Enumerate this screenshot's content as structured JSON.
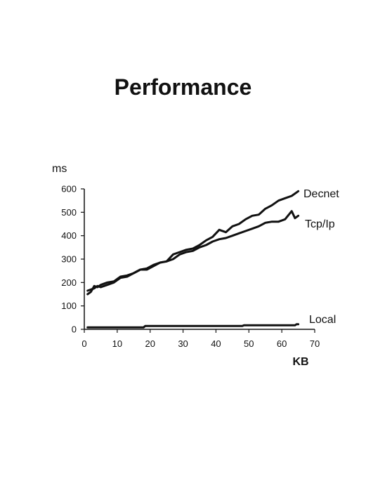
{
  "chart_data": {
    "type": "line",
    "title": "Performance",
    "ylabel": "ms",
    "xlabel": "KB",
    "xlim": [
      0,
      70
    ],
    "ylim": [
      0,
      600
    ],
    "xticks": [
      0,
      10,
      20,
      30,
      40,
      50,
      60,
      70
    ],
    "yticks": [
      0,
      100,
      200,
      300,
      400,
      500,
      600
    ],
    "grid": false,
    "legend": "inline labels at line ends",
    "series": [
      {
        "name": "Decnet",
        "x": [
          1,
          2,
          3,
          4,
          5,
          7,
          9,
          11,
          13,
          15,
          17,
          19,
          21,
          23,
          25,
          27,
          29,
          31,
          33,
          35,
          37,
          39,
          41,
          43,
          45,
          47,
          49,
          51,
          53,
          55,
          57,
          59,
          61,
          63,
          65
        ],
        "y": [
          150,
          160,
          185,
          180,
          190,
          200,
          205,
          225,
          230,
          240,
          255,
          260,
          275,
          285,
          290,
          320,
          330,
          340,
          345,
          360,
          380,
          395,
          425,
          415,
          440,
          450,
          470,
          485,
          490,
          515,
          530,
          550,
          560,
          570,
          590
        ]
      },
      {
        "name": "Tcp/Ip",
        "x": [
          1,
          2,
          3,
          4,
          5,
          7,
          9,
          11,
          13,
          15,
          17,
          19,
          21,
          23,
          25,
          27,
          29,
          31,
          33,
          35,
          37,
          39,
          41,
          43,
          45,
          47,
          49,
          51,
          53,
          55,
          57,
          59,
          61,
          63,
          64,
          65
        ],
        "y": [
          165,
          170,
          175,
          185,
          180,
          190,
          200,
          220,
          225,
          240,
          255,
          255,
          270,
          285,
          290,
          300,
          320,
          330,
          335,
          350,
          360,
          375,
          385,
          390,
          400,
          410,
          420,
          430,
          440,
          455,
          460,
          460,
          470,
          505,
          475,
          485
        ]
      },
      {
        "name": "Local",
        "x": [
          1,
          10,
          18,
          18.5,
          30,
          48,
          48.5,
          60,
          64,
          64.5,
          65
        ],
        "y": [
          8,
          8,
          8,
          14,
          14,
          14,
          17,
          17,
          17,
          22,
          22
        ]
      }
    ]
  }
}
